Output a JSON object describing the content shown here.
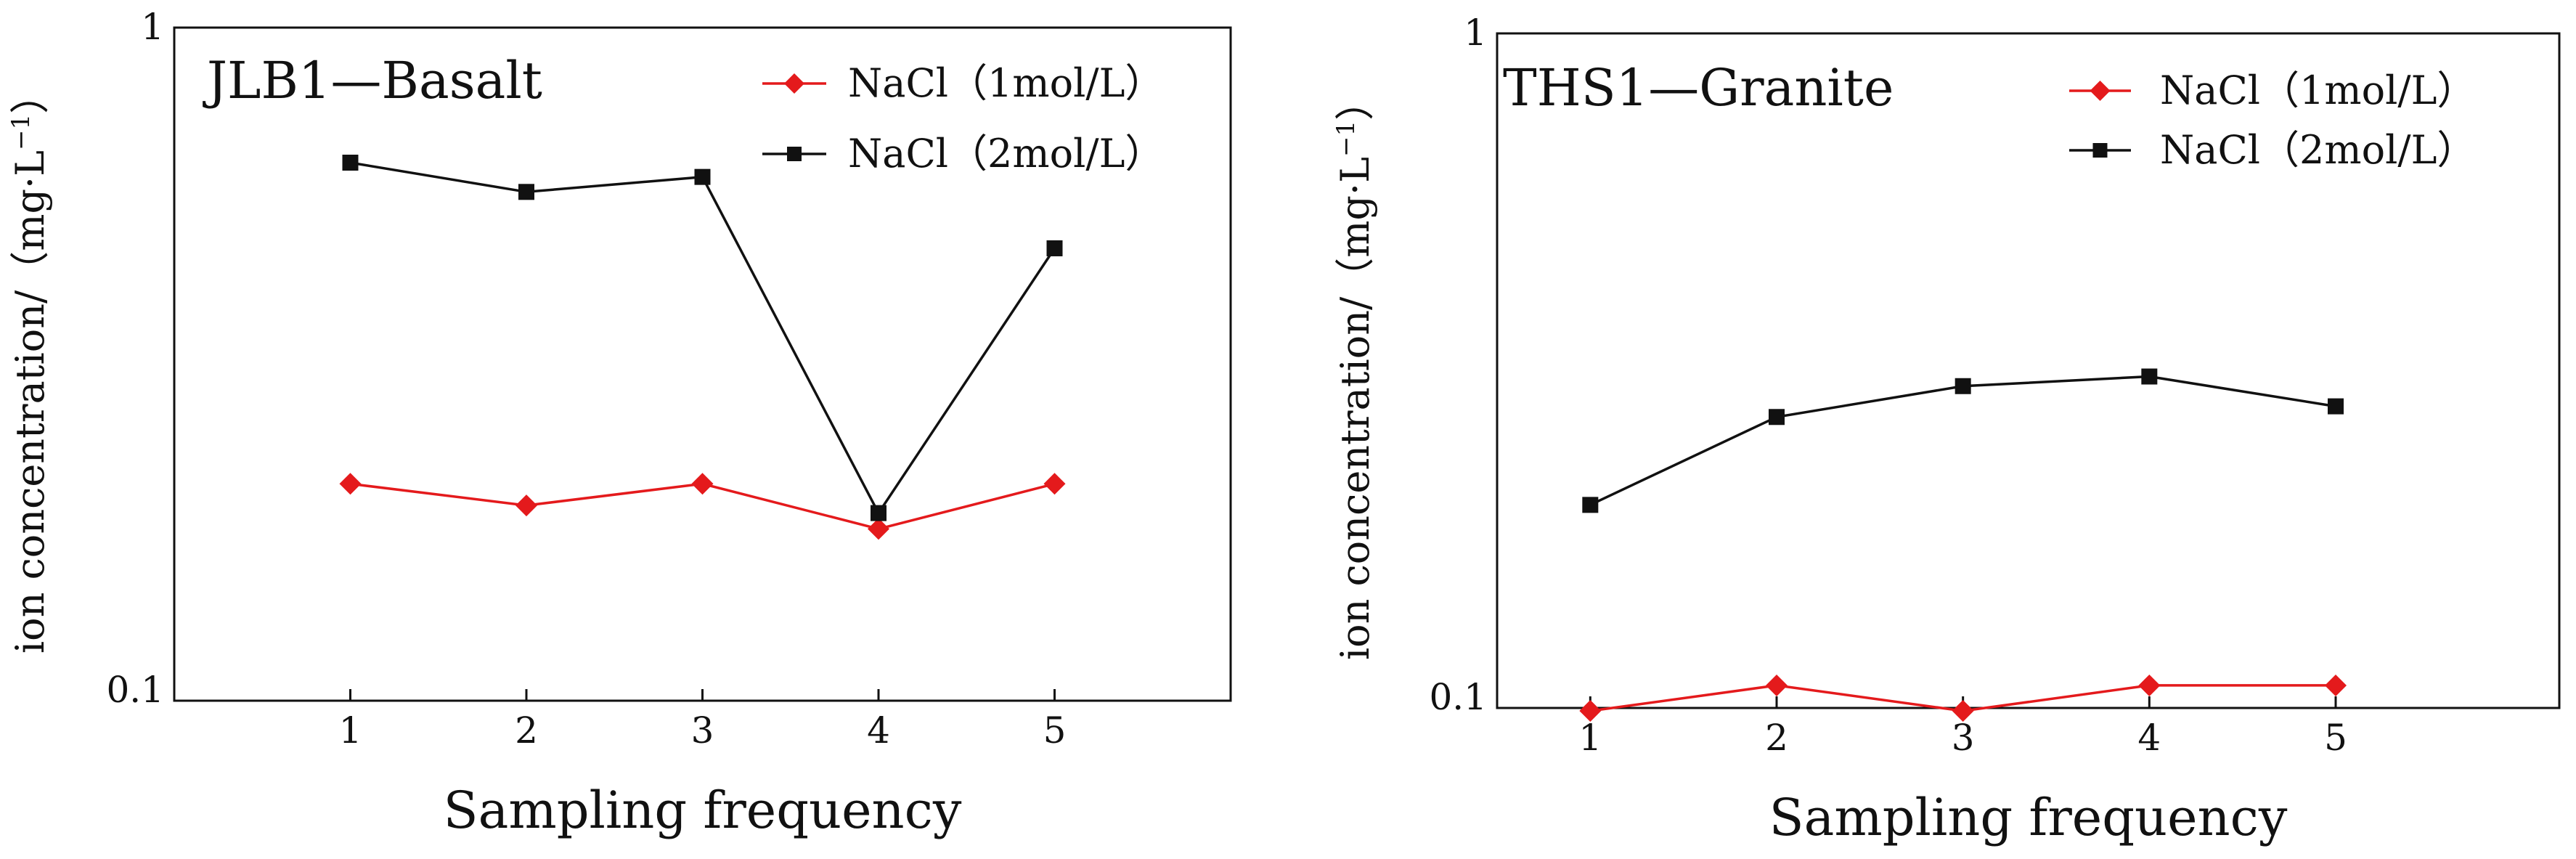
{
  "chart_data": [
    {
      "type": "line",
      "title": "JLB1—Basalt",
      "xlabel": "Sampling frequency",
      "ylabel": "ion concentration/（mg·L",
      "ylabel_sup": "−1",
      "ylabel_close": "）",
      "yscale": "log",
      "ylim": [
        0.1,
        1
      ],
      "xlim": [
        0,
        6
      ],
      "x": [
        1,
        2,
        3,
        4,
        5
      ],
      "xticks": [
        "1",
        "2",
        "3",
        "4",
        "5"
      ],
      "yticks": [
        {
          "value": 0.1,
          "label": "0.1"
        },
        {
          "value": 1,
          "label": "1"
        }
      ],
      "legend_position": "top-right",
      "series": [
        {
          "name": "NaCl（1mol/L）",
          "color": "#e41a1c",
          "marker": "diamond",
          "values": [
            0.21,
            0.195,
            0.21,
            0.18,
            0.21
          ]
        },
        {
          "name": "NaCl（2mol/L）",
          "color": "#111111",
          "marker": "square",
          "values": [
            0.63,
            0.57,
            0.6,
            0.19,
            0.47
          ]
        }
      ]
    },
    {
      "type": "line",
      "title": "THS1—Granite",
      "xlabel": "Sampling frequency",
      "ylabel": "ion concentration/（mg·L",
      "ylabel_sup": "−1",
      "ylabel_close": "）",
      "yscale": "log",
      "ylim": [
        0.1,
        1
      ],
      "xlim": [
        0.5,
        6.2
      ],
      "x": [
        1,
        2,
        3,
        4,
        5
      ],
      "xticks": [
        "1",
        "2",
        "3",
        "4",
        "5"
      ],
      "yticks": [
        {
          "value": 0.1,
          "label": "0.1"
        },
        {
          "value": 1,
          "label": "1"
        }
      ],
      "legend_position": "top-right",
      "series": [
        {
          "name": "NaCl（1mol/L）",
          "color": "#e41a1c",
          "marker": "diamond",
          "values": [
            0.099,
            0.108,
            0.099,
            0.108,
            0.108
          ]
        },
        {
          "name": "NaCl（2mol/L）",
          "color": "#111111",
          "marker": "square",
          "values": [
            0.2,
            0.27,
            0.3,
            0.31,
            0.28
          ]
        }
      ]
    }
  ]
}
